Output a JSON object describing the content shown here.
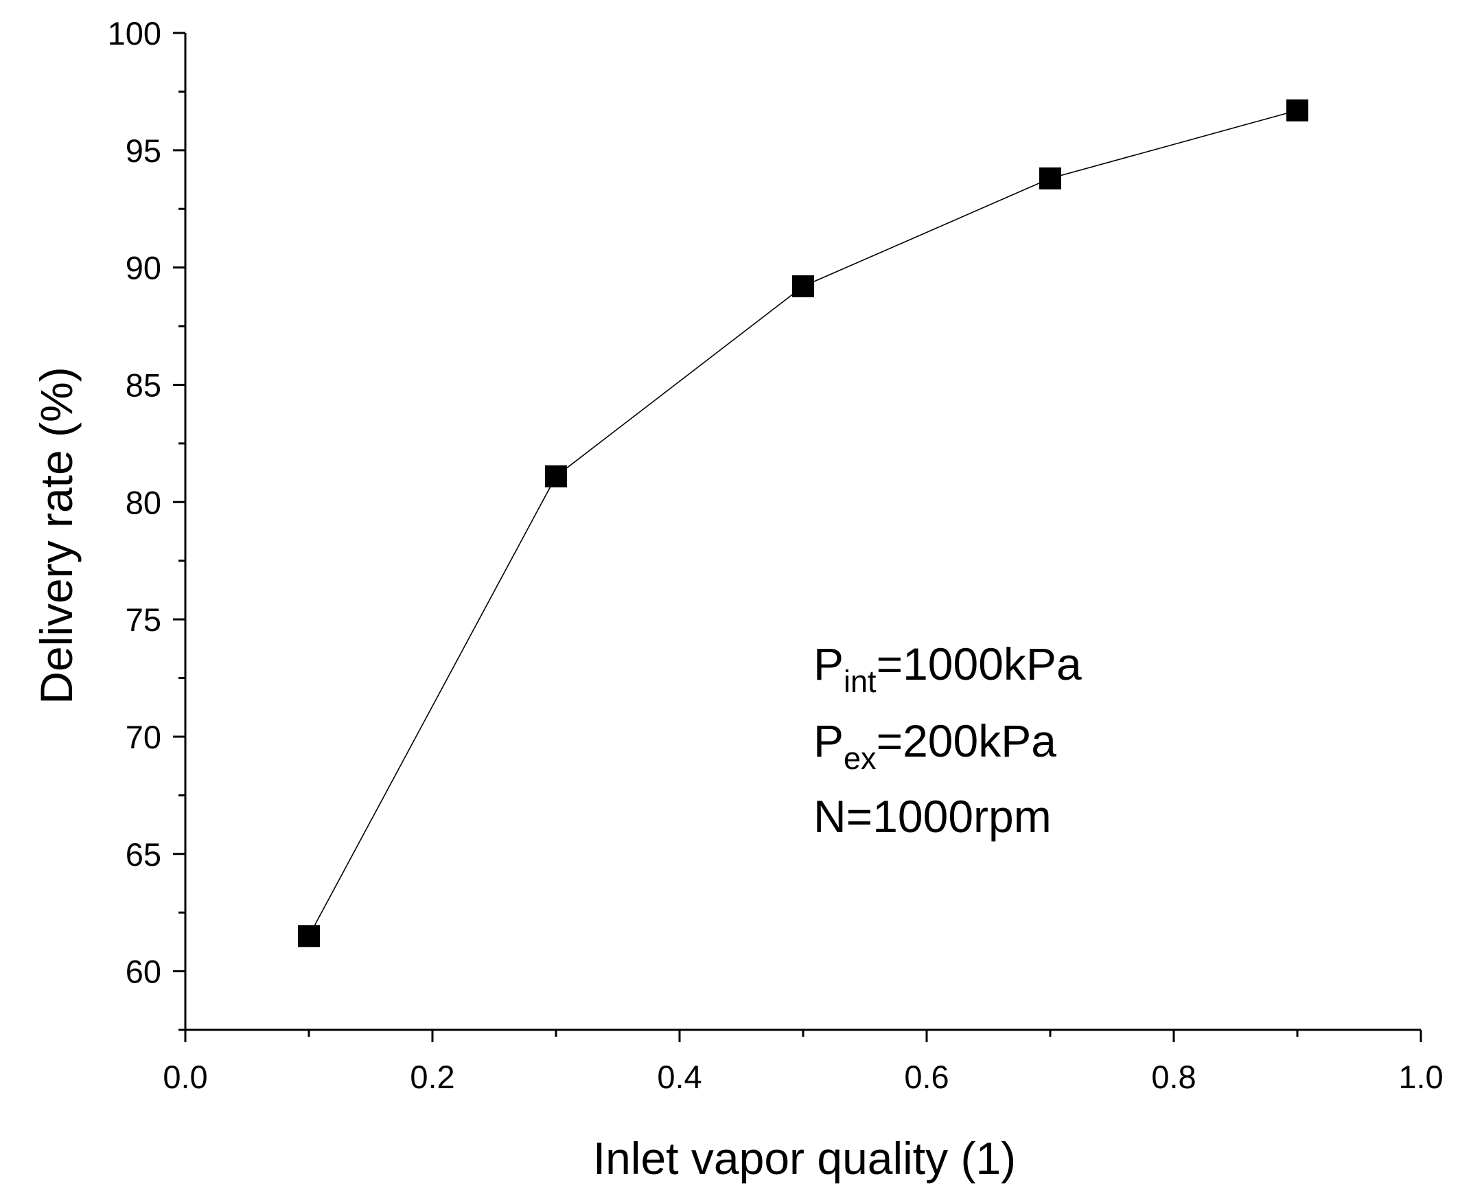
{
  "chart_data": {
    "type": "line",
    "title": "",
    "xlabel": "Inlet vapor quality (1)",
    "ylabel": "Delivery rate (%)",
    "xlim": [
      0.0,
      1.0
    ],
    "ylim": [
      57.5,
      100
    ],
    "x_ticks": [
      0.0,
      0.2,
      0.4,
      0.6,
      0.8,
      1.0
    ],
    "x_tick_labels": [
      "0.0",
      "0.2",
      "0.4",
      "0.6",
      "0.8",
      "1.0"
    ],
    "x_minor_step": 0.1,
    "y_ticks": [
      60,
      65,
      70,
      75,
      80,
      85,
      90,
      95,
      100
    ],
    "y_tick_labels": [
      "60",
      "65",
      "70",
      "75",
      "80",
      "85",
      "90",
      "95",
      "100"
    ],
    "y_minor_step": 2.5,
    "grid": false,
    "legend": "none",
    "marker": "filled-square",
    "line_color": "#000000",
    "marker_color": "#000000",
    "series": [
      {
        "x": [
          0.1,
          0.3,
          0.5,
          0.7,
          0.9
        ],
        "values": [
          61.5,
          81.1,
          89.2,
          93.8,
          96.7
        ]
      }
    ],
    "annotations": [
      {
        "main": "P",
        "sub": "int",
        "rest": "=1000kPa"
      },
      {
        "main": "P",
        "sub": "ex",
        "rest": "=200kPa"
      },
      {
        "main": "N=1000rpm",
        "sub": "",
        "rest": ""
      }
    ]
  }
}
